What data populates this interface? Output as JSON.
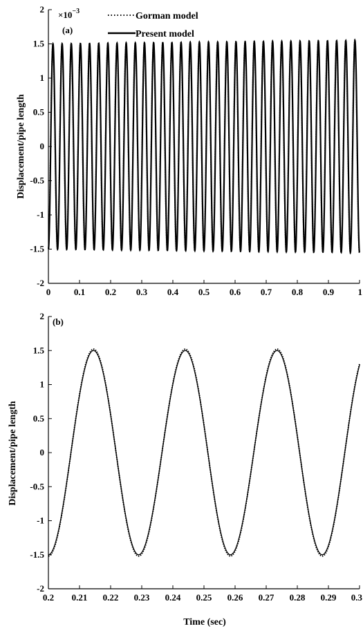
{
  "chart_data": [
    {
      "type": "line",
      "panel_label": "(a)",
      "xlabel": "",
      "ylabel": "Displacement/pipe length",
      "xlim": [
        0,
        1
      ],
      "ylim": [
        -2,
        2
      ],
      "y_multiplier": "×10",
      "y_exponent": "−3",
      "xticks": [
        "0",
        "0.1",
        "0.2",
        "0.3",
        "0.4",
        "0.5",
        "0.6",
        "0.7",
        "0.8",
        "0.9",
        "1"
      ],
      "yticks": [
        "-2",
        "-1.5",
        "-1",
        "-0.5",
        "0",
        "0.5",
        "1",
        "1.5",
        "2"
      ],
      "legend_position": "top-center",
      "series": [
        {
          "name": "Gorman model",
          "style": "dotted",
          "frequency_hz": 34,
          "phase_start_x": 0,
          "amplitude_start": 1.5,
          "amplitude_end": 1.56
        },
        {
          "name": "Present model",
          "style": "solid",
          "frequency_hz": 34,
          "phase_start_x": 0,
          "amplitude_start": 1.5,
          "amplitude_end": 1.55
        }
      ]
    },
    {
      "type": "line",
      "panel_label": "(b)",
      "xlabel": "Time (sec)",
      "ylabel": "Displacement/pipe length",
      "xlim": [
        0.2,
        0.3
      ],
      "ylim": [
        -2,
        2
      ],
      "xticks": [
        "0.2",
        "0.21",
        "0.22",
        "0.23",
        "0.24",
        "0.25",
        "0.26",
        "0.27",
        "0.28",
        "0.29",
        "0.3"
      ],
      "yticks": [
        "-2",
        "-1.5",
        "-1",
        "-0.5",
        "0",
        "0.5",
        "1",
        "1.5",
        "2"
      ],
      "series": [
        {
          "name": "Gorman model",
          "style": "dotted",
          "peaks": [
            0.2145,
            0.244,
            0.2735
          ],
          "troughs": [
            0.2,
            0.229,
            0.2585,
            0.288
          ],
          "amplitude": 1.52
        },
        {
          "name": "Present model",
          "style": "solid",
          "peaks": [
            0.2145,
            0.244,
            0.2735
          ],
          "troughs": [
            0.2,
            0.229,
            0.2585,
            0.288
          ],
          "amplitude": 1.5
        }
      ]
    }
  ]
}
